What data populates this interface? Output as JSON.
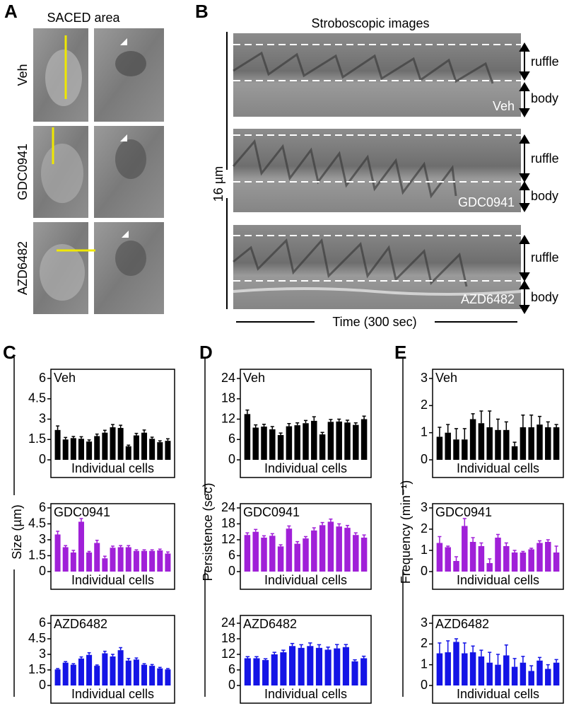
{
  "panels": {
    "a": "A",
    "b": "B",
    "c": "C",
    "d": "D",
    "e": "E"
  },
  "panel_a": {
    "title": "SACED area",
    "rows": [
      "Veh",
      "GDC0941",
      "AZD6482"
    ]
  },
  "panel_b": {
    "title": "Stroboscopic images",
    "scale": "16 µm",
    "ruffle": "ruffle",
    "body": "body",
    "time_axis": "Time (300 sec)"
  },
  "chart_data": [
    {
      "type": "bar",
      "title": "Veh",
      "xlabel": "Individual cells",
      "color": "#000000",
      "ylim": [
        0,
        6
      ],
      "yticks": [
        0,
        1.5,
        3,
        4.5,
        6
      ],
      "values": [
        2.2,
        1.5,
        1.6,
        1.55,
        1.35,
        1.75,
        2.0,
        2.4,
        2.35,
        1.0,
        1.8,
        2.0,
        1.55,
        1.3,
        1.4
      ],
      "errors": [
        0.3,
        0.15,
        0.12,
        0.15,
        0.12,
        0.15,
        0.18,
        0.2,
        0.2,
        0.08,
        0.15,
        0.2,
        0.12,
        0.1,
        0.15
      ]
    },
    {
      "type": "bar",
      "title": "GDC0941",
      "xlabel": "Individual cells",
      "ylabel": "Size (µm)",
      "color": "#a020d8",
      "ylim": [
        0,
        6
      ],
      "yticks": [
        0,
        1.5,
        3,
        4.5,
        6
      ],
      "values": [
        3.5,
        2.3,
        1.8,
        4.7,
        1.8,
        2.7,
        1.25,
        2.25,
        2.3,
        2.3,
        1.95,
        1.95,
        1.95,
        2.0,
        1.7
      ],
      "errors": [
        0.3,
        0.15,
        0.2,
        0.3,
        0.1,
        0.25,
        0.2,
        0.15,
        0.15,
        0.15,
        0.1,
        0.1,
        0.1,
        0.12,
        0.15
      ]
    },
    {
      "type": "bar",
      "title": "AZD6482",
      "xlabel": "Individual cells",
      "color": "#1414e6",
      "ylim": [
        0,
        6
      ],
      "yticks": [
        0,
        1.5,
        3,
        4.5,
        6
      ],
      "values": [
        1.55,
        2.2,
        2.0,
        2.6,
        2.95,
        1.9,
        3.1,
        2.8,
        3.4,
        2.4,
        2.5,
        2.0,
        1.9,
        1.65,
        1.55
      ],
      "errors": [
        0.08,
        0.1,
        0.1,
        0.15,
        0.2,
        0.08,
        0.2,
        0.2,
        0.25,
        0.2,
        0.15,
        0.1,
        0.12,
        0.1,
        0.08
      ]
    },
    {
      "type": "bar",
      "title": "Veh",
      "xlabel": "Individual cells",
      "color": "#000000",
      "ylim": [
        0,
        24
      ],
      "yticks": [
        0,
        6,
        12,
        18,
        24
      ],
      "values": [
        13.5,
        9.5,
        9.8,
        9.0,
        7.3,
        9.9,
        10.2,
        10.8,
        11.5,
        7.5,
        11.2,
        11.3,
        11.0,
        10.3,
        12.0
      ],
      "errors": [
        1.2,
        0.8,
        0.7,
        0.8,
        0.6,
        0.8,
        0.7,
        0.8,
        1.2,
        0.6,
        0.7,
        0.7,
        0.7,
        0.6,
        0.9
      ]
    },
    {
      "type": "bar",
      "title": "GDC0941",
      "xlabel": "Individual cells",
      "ylabel": "Persistence (sec)",
      "color": "#a020d8",
      "ylim": [
        0,
        24
      ],
      "yticks": [
        0,
        6,
        12,
        18,
        24
      ],
      "values": [
        13.8,
        15.0,
        12.8,
        13.5,
        9.5,
        16.2,
        10.5,
        12.5,
        15.5,
        17.5,
        18.8,
        17.0,
        16.5,
        13.8,
        12.8
      ],
      "errors": [
        0.8,
        0.9,
        0.7,
        0.8,
        0.6,
        1.0,
        0.8,
        0.7,
        1.0,
        1.0,
        1.0,
        1.0,
        0.9,
        0.8,
        1.0
      ]
    },
    {
      "type": "bar",
      "title": "AZD6482",
      "xlabel": "Individual cells",
      "color": "#1414e6",
      "ylim": [
        0,
        24
      ],
      "yticks": [
        0,
        6,
        12,
        18,
        24
      ],
      "values": [
        10.5,
        10.5,
        9.8,
        12.0,
        12.8,
        15.2,
        14.5,
        15.2,
        14.5,
        13.8,
        14.3,
        14.8,
        9.3,
        10.5
      ],
      "errors": [
        0.6,
        0.6,
        0.5,
        0.8,
        0.8,
        1.0,
        1.2,
        1.2,
        1.2,
        1.0,
        1.5,
        1.0,
        0.6,
        0.8
      ]
    },
    {
      "type": "bar",
      "title": "Veh",
      "xlabel": "Individual cells",
      "color": "#000000",
      "ylim": [
        0,
        3
      ],
      "yticks": [
        0,
        1,
        2,
        3
      ],
      "values": [
        0.85,
        1.0,
        0.75,
        0.75,
        1.5,
        1.35,
        1.2,
        1.1,
        1.1,
        0.5,
        1.2,
        1.2,
        1.3,
        1.2,
        1.2
      ],
      "errors": [
        0.35,
        0.3,
        0.4,
        0.4,
        0.2,
        0.45,
        0.6,
        0.4,
        0.3,
        0.15,
        0.45,
        0.45,
        0.3,
        0.2,
        0.1
      ]
    },
    {
      "type": "bar",
      "title": "GDC0941",
      "xlabel": "Individual cells",
      "ylabel": "Frequency (min⁻¹)",
      "color": "#a020d8",
      "ylim": [
        0,
        3
      ],
      "yticks": [
        0,
        1,
        2,
        3
      ],
      "values": [
        1.35,
        1.15,
        0.5,
        2.15,
        1.4,
        1.2,
        0.4,
        1.6,
        1.2,
        0.9,
        0.9,
        1.05,
        1.35,
        1.4,
        0.9
      ],
      "errors": [
        0.3,
        0.05,
        0.2,
        0.35,
        0.2,
        0.15,
        0.2,
        0.15,
        0.15,
        0.1,
        0.05,
        0.05,
        0.1,
        0.1,
        0.3
      ]
    },
    {
      "type": "bar",
      "title": "AZD6482",
      "xlabel": "Individual cells",
      "color": "#1414e6",
      "ylim": [
        0,
        3
      ],
      "yticks": [
        0,
        1,
        2,
        3
      ],
      "values": [
        1.55,
        1.6,
        2.1,
        1.55,
        1.6,
        1.4,
        1.1,
        1.0,
        1.45,
        0.9,
        1.1,
        0.7,
        1.2,
        0.8,
        1.1
      ],
      "errors": [
        0.5,
        0.55,
        0.15,
        0.5,
        0.3,
        0.3,
        0.5,
        0.5,
        0.5,
        0.4,
        0.3,
        0.25,
        0.15,
        0.2,
        0.15
      ]
    }
  ]
}
